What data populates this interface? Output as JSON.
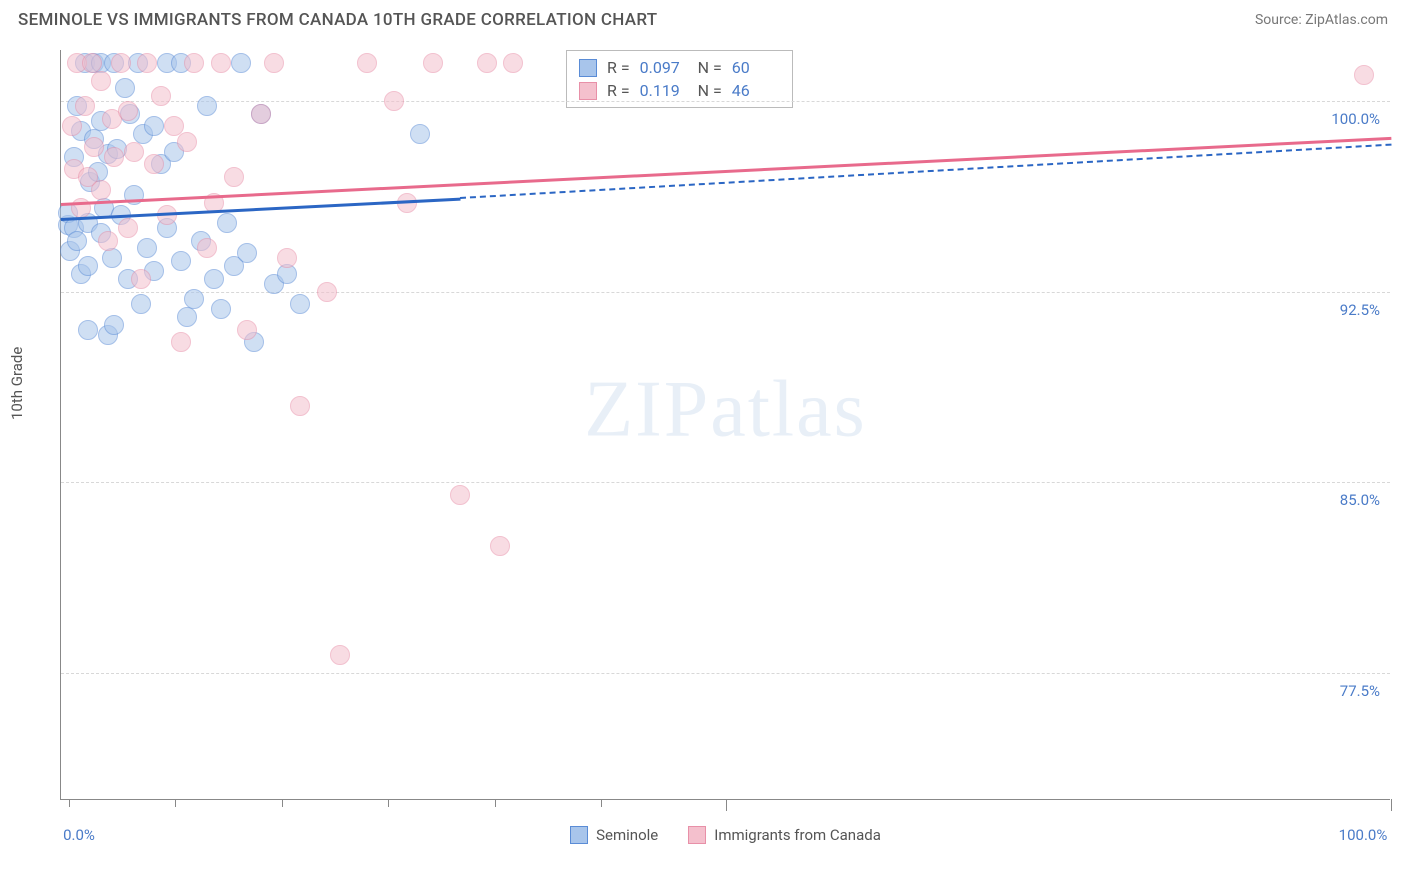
{
  "title": "SEMINOLE VS IMMIGRANTS FROM CANADA 10TH GRADE CORRELATION CHART",
  "source": "Source: ZipAtlas.com",
  "ylabel": "10th Grade",
  "watermark": "ZIPatlas",
  "chart": {
    "type": "scatter",
    "background_color": "#ffffff",
    "grid_color": "#d8d8d8",
    "axis_color": "#888888",
    "label_color": "#4a7bc8",
    "text_color": "#555555",
    "xlim": [
      0,
      100
    ],
    "ylim": [
      72.5,
      102
    ],
    "xticks_minor": [
      0.6,
      8.6,
      16.6,
      24.6,
      32.6,
      40.6
    ],
    "xticks_major": [
      50,
      100
    ],
    "xtick_labels": [
      {
        "pos": 0,
        "label": "0.0%"
      },
      {
        "pos": 100,
        "label": "100.0%"
      }
    ],
    "yticks": [
      {
        "pos": 77.5,
        "label": "77.5%"
      },
      {
        "pos": 85.0,
        "label": "85.0%"
      },
      {
        "pos": 92.5,
        "label": "92.5%"
      },
      {
        "pos": 100.0,
        "label": "100.0%"
      }
    ],
    "marker_radius": 10,
    "marker_opacity": 0.55,
    "series": [
      {
        "name": "Seminole",
        "fill": "#a8c5eb",
        "stroke": "#5a8cd6",
        "trend_color": "#2b66c4",
        "R": "0.097",
        "N": "60",
        "trend_solid": {
          "x1": 0,
          "y1": 95.4,
          "x2": 30,
          "y2": 96.2
        },
        "trend_dashed": {
          "x1": 30,
          "y1": 96.2,
          "x2": 100,
          "y2": 98.3
        },
        "points": [
          [
            0.5,
            95.1
          ],
          [
            0.5,
            95.6
          ],
          [
            0.7,
            94.1
          ],
          [
            1.0,
            95.0
          ],
          [
            1.0,
            97.8
          ],
          [
            1.2,
            94.5
          ],
          [
            1.2,
            99.8
          ],
          [
            1.5,
            93.2
          ],
          [
            1.5,
            98.8
          ],
          [
            1.8,
            101.5
          ],
          [
            2.0,
            91.0
          ],
          [
            2.0,
            95.2
          ],
          [
            2.0,
            93.5
          ],
          [
            2.2,
            96.8
          ],
          [
            2.5,
            101.5
          ],
          [
            2.5,
            98.5
          ],
          [
            2.8,
            97.2
          ],
          [
            3.0,
            101.5
          ],
          [
            3.0,
            94.8
          ],
          [
            3.0,
            99.2
          ],
          [
            3.2,
            95.8
          ],
          [
            3.5,
            90.8
          ],
          [
            3.5,
            97.9
          ],
          [
            3.8,
            93.8
          ],
          [
            4.0,
            101.5
          ],
          [
            4.0,
            91.2
          ],
          [
            4.2,
            98.1
          ],
          [
            4.5,
            95.5
          ],
          [
            4.8,
            100.5
          ],
          [
            5.0,
            93.0
          ],
          [
            5.2,
            99.5
          ],
          [
            5.5,
            96.3
          ],
          [
            5.8,
            101.5
          ],
          [
            6.0,
            92.0
          ],
          [
            6.2,
            98.7
          ],
          [
            6.5,
            94.2
          ],
          [
            7.0,
            93.3
          ],
          [
            7.0,
            99.0
          ],
          [
            7.5,
            97.5
          ],
          [
            8.0,
            101.5
          ],
          [
            8.0,
            95.0
          ],
          [
            8.5,
            98.0
          ],
          [
            9.0,
            93.7
          ],
          [
            9.0,
            101.5
          ],
          [
            9.5,
            91.5
          ],
          [
            10.0,
            92.2
          ],
          [
            10.5,
            94.5
          ],
          [
            11.0,
            99.8
          ],
          [
            11.5,
            93.0
          ],
          [
            12.0,
            91.8
          ],
          [
            12.5,
            95.2
          ],
          [
            13.0,
            93.5
          ],
          [
            13.5,
            101.5
          ],
          [
            14.0,
            94.0
          ],
          [
            14.5,
            90.5
          ],
          [
            15.0,
            99.5
          ],
          [
            16.0,
            92.8
          ],
          [
            17.0,
            93.2
          ],
          [
            18.0,
            92.0
          ],
          [
            27.0,
            98.7
          ]
        ]
      },
      {
        "name": "Immigrants from Canada",
        "fill": "#f4c0cd",
        "stroke": "#e890a8",
        "trend_color": "#e86a8c",
        "R": "0.119",
        "N": "46",
        "trend_solid": {
          "x1": 0,
          "y1": 96.0,
          "x2": 100,
          "y2": 98.6
        },
        "trend_dashed": null,
        "points": [
          [
            0.8,
            99.0
          ],
          [
            1.0,
            97.3
          ],
          [
            1.2,
            101.5
          ],
          [
            1.5,
            95.8
          ],
          [
            1.8,
            99.8
          ],
          [
            2.0,
            97.0
          ],
          [
            2.3,
            101.5
          ],
          [
            2.5,
            98.2
          ],
          [
            3.0,
            96.5
          ],
          [
            3.0,
            100.8
          ],
          [
            3.5,
            94.5
          ],
          [
            3.8,
            99.3
          ],
          [
            4.0,
            97.8
          ],
          [
            4.5,
            101.5
          ],
          [
            5.0,
            95.0
          ],
          [
            5.0,
            99.6
          ],
          [
            5.5,
            98.0
          ],
          [
            6.0,
            93.0
          ],
          [
            6.5,
            101.5
          ],
          [
            7.0,
            97.5
          ],
          [
            7.5,
            100.2
          ],
          [
            8.0,
            95.5
          ],
          [
            8.5,
            99.0
          ],
          [
            9.0,
            90.5
          ],
          [
            9.5,
            98.4
          ],
          [
            10.0,
            101.5
          ],
          [
            11.0,
            94.2
          ],
          [
            11.5,
            96.0
          ],
          [
            12.0,
            101.5
          ],
          [
            13.0,
            97.0
          ],
          [
            14.0,
            91.0
          ],
          [
            15.0,
            99.5
          ],
          [
            16.0,
            101.5
          ],
          [
            17.0,
            93.8
          ],
          [
            18.0,
            88.0
          ],
          [
            20.0,
            92.5
          ],
          [
            21.0,
            78.2
          ],
          [
            23.0,
            101.5
          ],
          [
            25.0,
            100.0
          ],
          [
            26.0,
            96.0
          ],
          [
            28.0,
            101.5
          ],
          [
            30.0,
            84.5
          ],
          [
            32.0,
            101.5
          ],
          [
            33.0,
            82.5
          ],
          [
            34.0,
            101.5
          ],
          [
            98.0,
            101.0
          ]
        ]
      }
    ]
  }
}
